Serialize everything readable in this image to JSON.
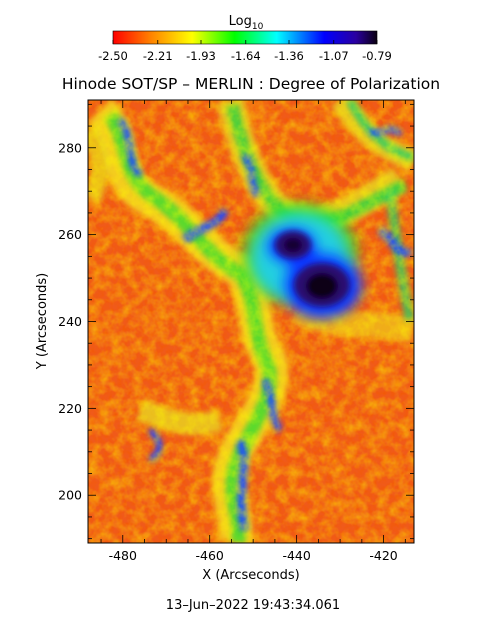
{
  "colorbar": {
    "title_main": "Log",
    "title_sub": "10",
    "ticks": [
      "-2.50",
      "-2.21",
      "-1.93",
      "-1.64",
      "-1.36",
      "-1.07",
      "-0.79"
    ],
    "range": [
      -2.5,
      -0.79
    ]
  },
  "plot": {
    "title": "Hinode SOT/SP – MERLIN : Degree of Polarization",
    "xlabel": "X (Arcseconds)",
    "ylabel": "Y (Arcseconds)",
    "xlim": [
      -488,
      -413
    ],
    "ylim": [
      189,
      291
    ],
    "xticks": [
      "-480",
      "-460",
      "-440",
      "-420"
    ],
    "yticks": [
      "200",
      "220",
      "240",
      "260",
      "280"
    ]
  },
  "timestamp": "13–Jun–2022 19:43:34.061",
  "colormap": [
    "#ff0000",
    "#ff7f00",
    "#ffff00",
    "#00ff00",
    "#00ffff",
    "#0000ff",
    "#1a0033"
  ]
}
